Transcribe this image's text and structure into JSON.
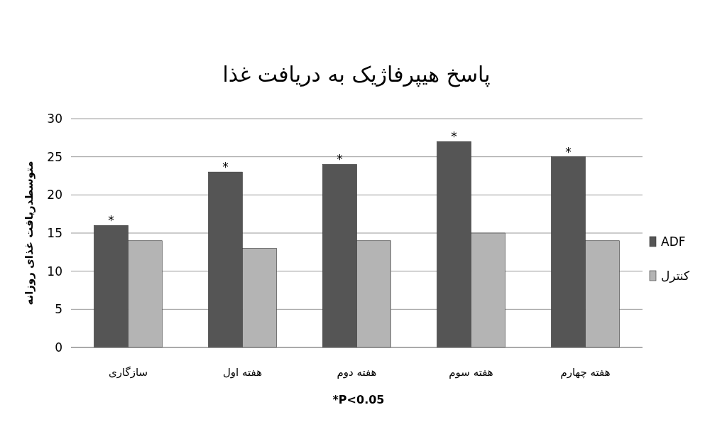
{
  "chart_data": {
    "type": "bar",
    "title": "پاسخ هیپرفاژیک به دریافت غذا",
    "ylabel": "متوسطدریافت غذای روزانه",
    "categories": [
      "سازگاری",
      "هفته اول",
      "هفته دوم",
      "هفته سوم",
      "هفته چهارم"
    ],
    "series": [
      {
        "name": "ADF",
        "color": "#555555",
        "values": [
          16,
          23,
          24,
          27,
          25
        ]
      },
      {
        "name": "کنترل",
        "color": "#b4b4b4",
        "values": [
          14,
          13,
          14,
          15,
          14
        ]
      }
    ],
    "ylim": [
      0,
      30
    ],
    "yticks": [
      0,
      5,
      10,
      15,
      20,
      25,
      30
    ],
    "grid": "y",
    "legend": "right",
    "annotations": [
      {
        "text": "*",
        "x": "سازگاری",
        "y": 16
      },
      {
        "text": "*",
        "x": "هفته اول",
        "y": 23
      },
      {
        "text": "*",
        "x": "هفته دوم",
        "y": 24
      },
      {
        "text": "*",
        "x": "هفته سوم",
        "y": 27
      },
      {
        "text": "*",
        "x": "هفته چهارم",
        "y": 25
      },
      "*P<0.05"
    ]
  }
}
